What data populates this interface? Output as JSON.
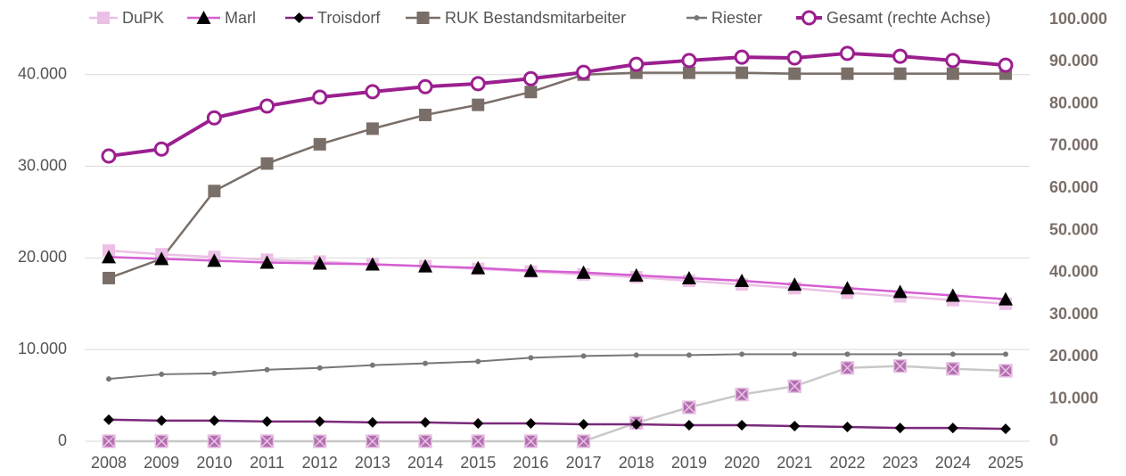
{
  "chart_data": {
    "type": "line",
    "categories": [
      "2008",
      "2009",
      "2010",
      "2011",
      "2012",
      "2013",
      "2014",
      "2015",
      "2016",
      "2017",
      "2018",
      "2019",
      "2020",
      "2021",
      "2022",
      "2023",
      "2024",
      "2025"
    ],
    "series": [
      {
        "values": [
          0,
          0,
          0,
          0,
          0,
          0,
          0,
          0,
          0,
          0,
          2000,
          3700,
          5100,
          6000,
          8000,
          8200,
          7900,
          7700
        ],
        "color": "#c8c8c8",
        "marker": "xsquare",
        "marker_color": "#b36fb0"
      },
      {
        "name": "DuPK",
        "color": "#ecc0e6",
        "marker": "square",
        "marker_color": "#ecc0e6",
        "values": [
          20800,
          20400,
          20100,
          19800,
          19600,
          19300,
          19100,
          18800,
          18500,
          18200,
          17900,
          17500,
          17100,
          16700,
          16200,
          15800,
          15400,
          15000
        ]
      },
      {
        "name": "Marl",
        "color": "#d65fd2",
        "marker": "triangle",
        "marker_color": "#000000",
        "values": [
          20100,
          19900,
          19700,
          19500,
          19400,
          19300,
          19100,
          18900,
          18600,
          18400,
          18100,
          17800,
          17500,
          17100,
          16700,
          16300,
          15900,
          15500
        ]
      },
      {
        "name": "Troisdorf",
        "color": "#7b2a7b",
        "marker": "diamond",
        "marker_color": "#000000",
        "values": [
          2350,
          2250,
          2250,
          2150,
          2150,
          2050,
          2050,
          1950,
          1950,
          1850,
          1850,
          1750,
          1750,
          1650,
          1550,
          1450,
          1450,
          1350
        ]
      },
      {
        "name": "RUK Bestandsmitarbeiter",
        "color": "#7a6e68",
        "marker": "square",
        "marker_color": "#7a6e68",
        "values": [
          17800,
          19900,
          27300,
          30300,
          32400,
          34100,
          35600,
          36700,
          38100,
          40000,
          40200,
          40200,
          40200,
          40100,
          40100,
          40100,
          40100,
          40100
        ]
      },
      {
        "name": "Riester",
        "color": "#777777",
        "marker": "dot",
        "marker_color": "#777777",
        "values": [
          6800,
          7300,
          7400,
          7800,
          8000,
          8300,
          8500,
          8700,
          9100,
          9300,
          9400,
          9400,
          9500,
          9500,
          9500,
          9500,
          9500,
          9500
        ]
      },
      {
        "name": "Gesamt (rechte Achse)",
        "color": "#9b1f8f",
        "marker": "circle",
        "marker_color": "#9b1f8f",
        "axis": "y2",
        "values": [
          67650,
          69300,
          76700,
          79500,
          81600,
          82900,
          84100,
          84800,
          86000,
          87500,
          89400,
          90300,
          91100,
          90900,
          92000,
          91300,
          90300,
          89200
        ]
      }
    ],
    "ylim": [
      0,
      46000
    ],
    "yticks": [
      0,
      {
        "value": 10000,
        "label": "10.000"
      },
      {
        "value": 20000,
        "label": "20.000"
      },
      {
        "value": 30000,
        "label": "30.000"
      },
      {
        "value": 40000,
        "label": "40.000"
      }
    ],
    "y2lim": [
      0,
      100000
    ],
    "y2ticks": [
      0,
      {
        "value": 10000,
        "label": "10.000"
      },
      {
        "value": 20000,
        "label": "20.000"
      },
      {
        "value": 30000,
        "label": "30.000"
      },
      {
        "value": 40000,
        "label": "40.000"
      },
      {
        "value": 50000,
        "label": "50.000"
      },
      {
        "value": 60000,
        "label": "60.000"
      },
      {
        "value": 70000,
        "label": "70.000"
      },
      {
        "value": 80000,
        "label": "80.000"
      },
      {
        "value": 90000,
        "label": "90.000"
      },
      {
        "value": 100000,
        "label": "100.000"
      }
    ],
    "grid": true,
    "legend": "top"
  }
}
